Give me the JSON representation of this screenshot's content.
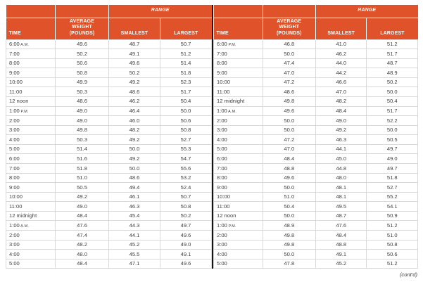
{
  "page": {
    "contd_label": "(cont'd)"
  },
  "colors": {
    "header_orange": "#E0522A",
    "grid_line": "#D9D9D9",
    "center_divider": "#141414",
    "body_text": "#3F3F3F"
  },
  "tables": [
    {
      "id": "left",
      "headers": {
        "range": "RANGE",
        "time": "TIME",
        "average_weight": "AVERAGE WEIGHT (POUNDS)",
        "smallest": "SMALLEST",
        "largest": "LARGEST"
      },
      "rows": [
        {
          "time": "6:00",
          "suffix": "A.M.",
          "avg": "49.6",
          "smallest": "48.7",
          "largest": "50.7"
        },
        {
          "time": "7:00",
          "suffix": "",
          "avg": "50.2",
          "smallest": "49.1",
          "largest": "51.2"
        },
        {
          "time": "8:00",
          "suffix": "",
          "avg": "50.6",
          "smallest": "49.6",
          "largest": "51.4"
        },
        {
          "time": "9:00",
          "suffix": "",
          "avg": "50.8",
          "smallest": "50.2",
          "largest": "51.8"
        },
        {
          "time": "10:00",
          "suffix": "",
          "avg": "49.9",
          "smallest": "49.2",
          "largest": "52.3"
        },
        {
          "time": "11:00",
          "suffix": "",
          "avg": "50.3",
          "smallest": "48.6",
          "largest": "51.7"
        },
        {
          "time": "12 noon",
          "suffix": "",
          "avg": "48.6",
          "smallest": "46.2",
          "largest": "50.4"
        },
        {
          "time": "1:00",
          "suffix": "P.M.",
          "avg": "49.0",
          "smallest": "46.4",
          "largest": "50.0"
        },
        {
          "time": "2:00",
          "suffix": "",
          "avg": "49.0",
          "smallest": "46.0",
          "largest": "50.6"
        },
        {
          "time": "3:00",
          "suffix": "",
          "avg": "49.8",
          "smallest": "48.2",
          "largest": "50.8"
        },
        {
          "time": "4:00",
          "suffix": "",
          "avg": "50.3",
          "smallest": "49.2",
          "largest": "52.7"
        },
        {
          "time": "5:00",
          "suffix": "",
          "avg": "51.4",
          "smallest": "50.0",
          "largest": "55.3"
        },
        {
          "time": "6:00",
          "suffix": "",
          "avg": "51.6",
          "smallest": "49.2",
          "largest": "54.7"
        },
        {
          "time": "7:00",
          "suffix": "",
          "avg": "51.8",
          "smallest": "50.0",
          "largest": "55.6"
        },
        {
          "time": "8:00",
          "suffix": "",
          "avg": "51.0",
          "smallest": "48.6",
          "largest": "53.2"
        },
        {
          "time": "9:00",
          "suffix": "",
          "avg": "50.5",
          "smallest": "49.4",
          "largest": "52.4"
        },
        {
          "time": "10:00",
          "suffix": "",
          "avg": "49.2",
          "smallest": "46.1",
          "largest": "50.7"
        },
        {
          "time": "11:00",
          "suffix": "",
          "avg": "49.0",
          "smallest": "46.3",
          "largest": "50.8"
        },
        {
          "time": "12 midnight",
          "suffix": "",
          "avg": "48.4",
          "smallest": "45.4",
          "largest": "50.2"
        },
        {
          "time": "1:00",
          "suffix": "A.M.",
          "avg": "47.6",
          "smallest": "44.3",
          "largest": "49.7"
        },
        {
          "time": "2:00",
          "suffix": "",
          "avg": "47.4",
          "smallest": "44.1",
          "largest": "49.6"
        },
        {
          "time": "3:00",
          "suffix": "",
          "avg": "48.2",
          "smallest": "45.2",
          "largest": "49.0"
        },
        {
          "time": "4:00",
          "suffix": "",
          "avg": "48.0",
          "smallest": "45.5",
          "largest": "49.1"
        },
        {
          "time": "5:00",
          "suffix": "",
          "avg": "48.4",
          "smallest": "47.1",
          "largest": "49.6"
        }
      ]
    },
    {
      "id": "right",
      "headers": {
        "range": "RANGE",
        "time": "TIME",
        "average_weight": "AVERAGE WEIGHT (POUNDS)",
        "smallest": "SMALLEST",
        "largest": "LARGEST"
      },
      "rows": [
        {
          "time": "6:00",
          "suffix": "P.M.",
          "avg": "46.8",
          "smallest": "41.0",
          "largest": "51.2"
        },
        {
          "time": "7:00",
          "suffix": "",
          "avg": "50.0",
          "smallest": "46.2",
          "largest": "51.7"
        },
        {
          "time": "8:00",
          "suffix": "",
          "avg": "47.4",
          "smallest": "44.0",
          "largest": "48.7"
        },
        {
          "time": "9:00",
          "suffix": "",
          "avg": "47.0",
          "smallest": "44.2",
          "largest": "48.9"
        },
        {
          "time": "10:00",
          "suffix": "",
          "avg": "47.2",
          "smallest": "46.6",
          "largest": "50.2"
        },
        {
          "time": "11:00",
          "suffix": "",
          "avg": "48.6",
          "smallest": "47.0",
          "largest": "50.0"
        },
        {
          "time": "12 midnight",
          "suffix": "",
          "avg": "49.8",
          "smallest": "48.2",
          "largest": "50.4"
        },
        {
          "time": "1:00",
          "suffix": "A.M.",
          "avg": "49.6",
          "smallest": "48.4",
          "largest": "51.7"
        },
        {
          "time": "2:00",
          "suffix": "",
          "avg": "50.0",
          "smallest": "49.0",
          "largest": "52.2"
        },
        {
          "time": "3:00",
          "suffix": "",
          "avg": "50.0",
          "smallest": "49.2",
          "largest": "50.0"
        },
        {
          "time": "4:00",
          "suffix": "",
          "avg": "47.2",
          "smallest": "46.3",
          "largest": "50.5"
        },
        {
          "time": "5:00",
          "suffix": "",
          "avg": "47.0",
          "smallest": "44.1",
          "largest": "49.7"
        },
        {
          "time": "6:00",
          "suffix": "",
          "avg": "48.4",
          "smallest": "45.0",
          "largest": "49.0"
        },
        {
          "time": "7:00",
          "suffix": "",
          "avg": "48.8",
          "smallest": "44.8",
          "largest": "49.7"
        },
        {
          "time": "8:00",
          "suffix": "",
          "avg": "49.6",
          "smallest": "48.0",
          "largest": "51.8"
        },
        {
          "time": "9:00",
          "suffix": "",
          "avg": "50.0",
          "smallest": "48.1",
          "largest": "52.7"
        },
        {
          "time": "10:00",
          "suffix": "",
          "avg": "51.0",
          "smallest": "48.1",
          "largest": "55.2"
        },
        {
          "time": "11:00",
          "suffix": "",
          "avg": "50.4",
          "smallest": "49.5",
          "largest": "54.1"
        },
        {
          "time": "12 noon",
          "suffix": "",
          "avg": "50.0",
          "smallest": "48.7",
          "largest": "50.9"
        },
        {
          "time": "1:00",
          "suffix": "P.M.",
          "avg": "48.9",
          "smallest": "47.6",
          "largest": "51.2"
        },
        {
          "time": "2:00",
          "suffix": "",
          "avg": "49.8",
          "smallest": "48.4",
          "largest": "51.0"
        },
        {
          "time": "3:00",
          "suffix": "",
          "avg": "49.8",
          "smallest": "48.8",
          "largest": "50.8"
        },
        {
          "time": "4:00",
          "suffix": "",
          "avg": "50.0",
          "smallest": "49.1",
          "largest": "50.6"
        },
        {
          "time": "5:00",
          "suffix": "",
          "avg": "47.8",
          "smallest": "45.2",
          "largest": "51.2"
        }
      ]
    }
  ]
}
